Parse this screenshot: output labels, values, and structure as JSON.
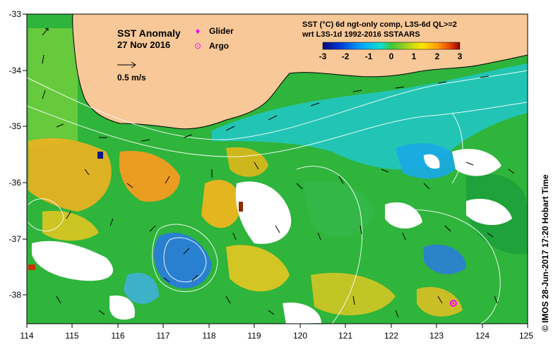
{
  "map": {
    "title": "SST Anomaly",
    "date": "27 Nov 2016",
    "vector_label": "0.5 m/s",
    "legend": {
      "glider_label": "Glider",
      "argo_label": "Argo",
      "glider_symbol": "♦",
      "argo_symbol": "⊙"
    },
    "product_line1": "SST (°C) 6d ngt-only comp, L3S-6d QL>=2",
    "product_line2": "wrt L3S-1d 1992-2016 SSTAARS",
    "credit": "© IMOS 28-Jun-2017 17:20 Hobart Time",
    "colorbar": {
      "ticks": [
        "-3",
        "-2",
        "-1",
        "0",
        "1",
        "2",
        "3"
      ],
      "min": -3,
      "max": 3,
      "colors": [
        "#0a0a7a",
        "#0037d4",
        "#00a3ff",
        "#10e0d0",
        "#3cc83c",
        "#9ad21e",
        "#ffe600",
        "#ff9a00",
        "#e23a00",
        "#8a0000"
      ]
    },
    "lon_ticks": [
      "114",
      "115",
      "116",
      "117",
      "118",
      "119",
      "120",
      "121",
      "122",
      "123",
      "124",
      "125"
    ],
    "lat_ticks": [
      "-33",
      "-34",
      "-35",
      "-36",
      "-37",
      "-38"
    ],
    "colors": {
      "land": "#f8c898",
      "ocean_base": "#2fb43c",
      "glider": "#ff00ff",
      "argo": "#ff00ff"
    }
  }
}
